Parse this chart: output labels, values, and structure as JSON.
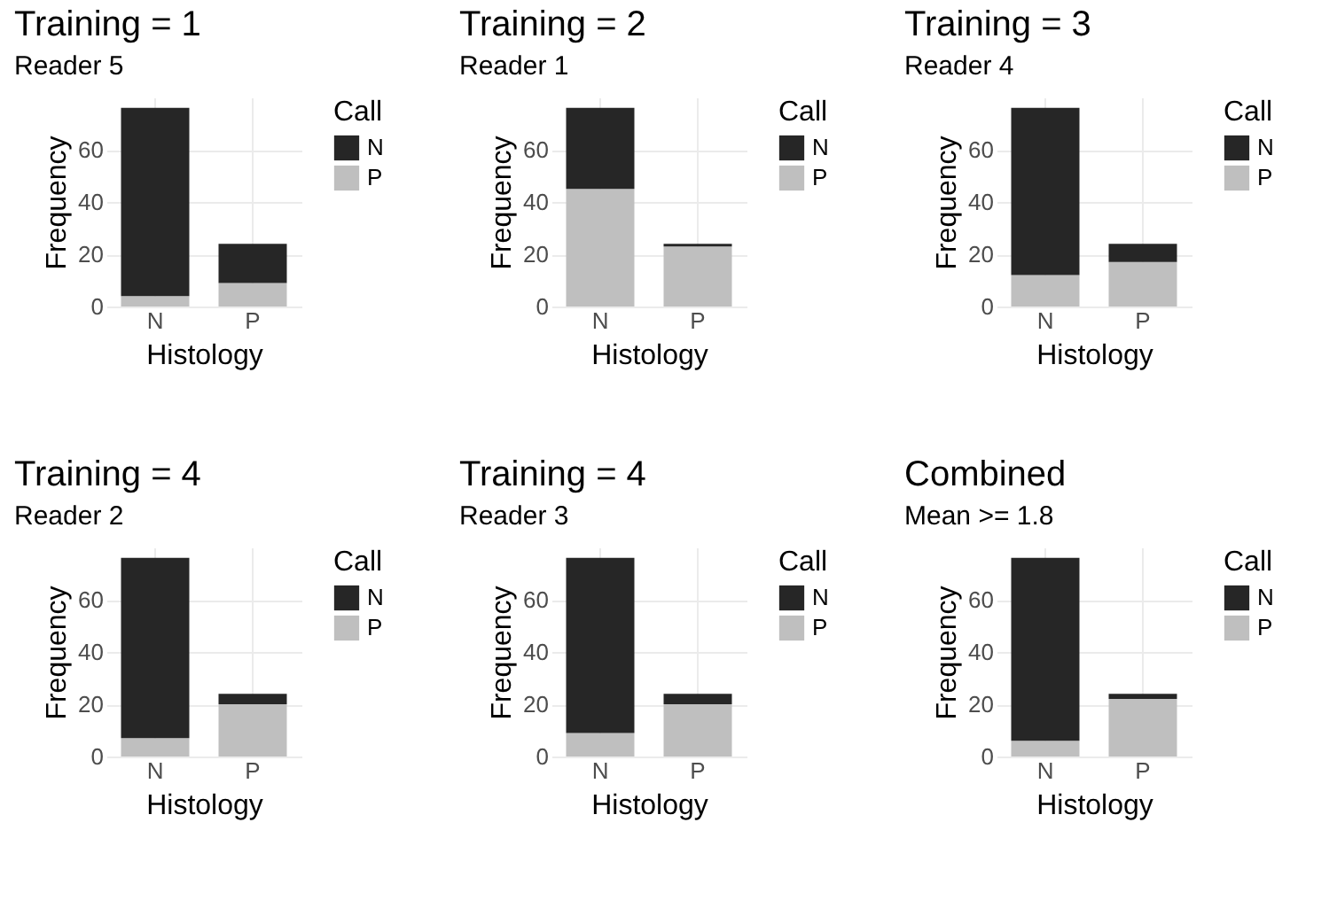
{
  "chart_data": [
    {
      "type": "bar",
      "title": "Training = 1",
      "subtitle": "Reader 5",
      "xlabel": "Histology",
      "ylabel": "Frequency",
      "legend_title": "Call",
      "categories": [
        "N",
        "P"
      ],
      "stacked": true,
      "ylim": [
        0,
        80
      ],
      "yticks": [
        0,
        20,
        40,
        60
      ],
      "grid": true,
      "legend": "right",
      "series": [
        {
          "name": "P",
          "color": "#bfbfbf",
          "values": [
            4,
            9
          ]
        },
        {
          "name": "N",
          "color": "#262626",
          "values": [
            72,
            15
          ]
        }
      ]
    },
    {
      "type": "bar",
      "title": "Training = 2",
      "subtitle": "Reader 1",
      "xlabel": "Histology",
      "ylabel": "Frequency",
      "legend_title": "Call",
      "categories": [
        "N",
        "P"
      ],
      "stacked": true,
      "ylim": [
        0,
        80
      ],
      "yticks": [
        0,
        20,
        40,
        60
      ],
      "grid": true,
      "legend": "right",
      "series": [
        {
          "name": "P",
          "color": "#bfbfbf",
          "values": [
            45,
            23
          ]
        },
        {
          "name": "N",
          "color": "#262626",
          "values": [
            31,
            1
          ]
        }
      ]
    },
    {
      "type": "bar",
      "title": "Training = 3",
      "subtitle": "Reader 4",
      "xlabel": "Histology",
      "ylabel": "Frequency",
      "legend_title": "Call",
      "categories": [
        "N",
        "P"
      ],
      "stacked": true,
      "ylim": [
        0,
        80
      ],
      "yticks": [
        0,
        20,
        40,
        60
      ],
      "grid": true,
      "legend": "right",
      "series": [
        {
          "name": "P",
          "color": "#bfbfbf",
          "values": [
            12,
            17
          ]
        },
        {
          "name": "N",
          "color": "#262626",
          "values": [
            64,
            7
          ]
        }
      ]
    },
    {
      "type": "bar",
      "title": "Training = 4",
      "subtitle": "Reader 2",
      "xlabel": "Histology",
      "ylabel": "Frequency",
      "legend_title": "Call",
      "categories": [
        "N",
        "P"
      ],
      "stacked": true,
      "ylim": [
        0,
        80
      ],
      "yticks": [
        0,
        20,
        40,
        60
      ],
      "grid": true,
      "legend": "right",
      "series": [
        {
          "name": "P",
          "color": "#bfbfbf",
          "values": [
            7,
            20
          ]
        },
        {
          "name": "N",
          "color": "#262626",
          "values": [
            69,
            4
          ]
        }
      ]
    },
    {
      "type": "bar",
      "title": "Training = 4",
      "subtitle": "Reader 3",
      "xlabel": "Histology",
      "ylabel": "Frequency",
      "legend_title": "Call",
      "categories": [
        "N",
        "P"
      ],
      "stacked": true,
      "ylim": [
        0,
        80
      ],
      "yticks": [
        0,
        20,
        40,
        60
      ],
      "grid": true,
      "legend": "right",
      "series": [
        {
          "name": "P",
          "color": "#bfbfbf",
          "values": [
            9,
            20
          ]
        },
        {
          "name": "N",
          "color": "#262626",
          "values": [
            67,
            4
          ]
        }
      ]
    },
    {
      "type": "bar",
      "title": "Combined",
      "subtitle": "Mean >= 1.8",
      "xlabel": "Histology",
      "ylabel": "Frequency",
      "legend_title": "Call",
      "categories": [
        "N",
        "P"
      ],
      "stacked": true,
      "ylim": [
        0,
        80
      ],
      "yticks": [
        0,
        20,
        40,
        60
      ],
      "grid": true,
      "legend": "right",
      "series": [
        {
          "name": "P",
          "color": "#bfbfbf",
          "values": [
            6,
            22
          ]
        },
        {
          "name": "N",
          "color": "#262626",
          "values": [
            70,
            2
          ]
        }
      ]
    }
  ]
}
